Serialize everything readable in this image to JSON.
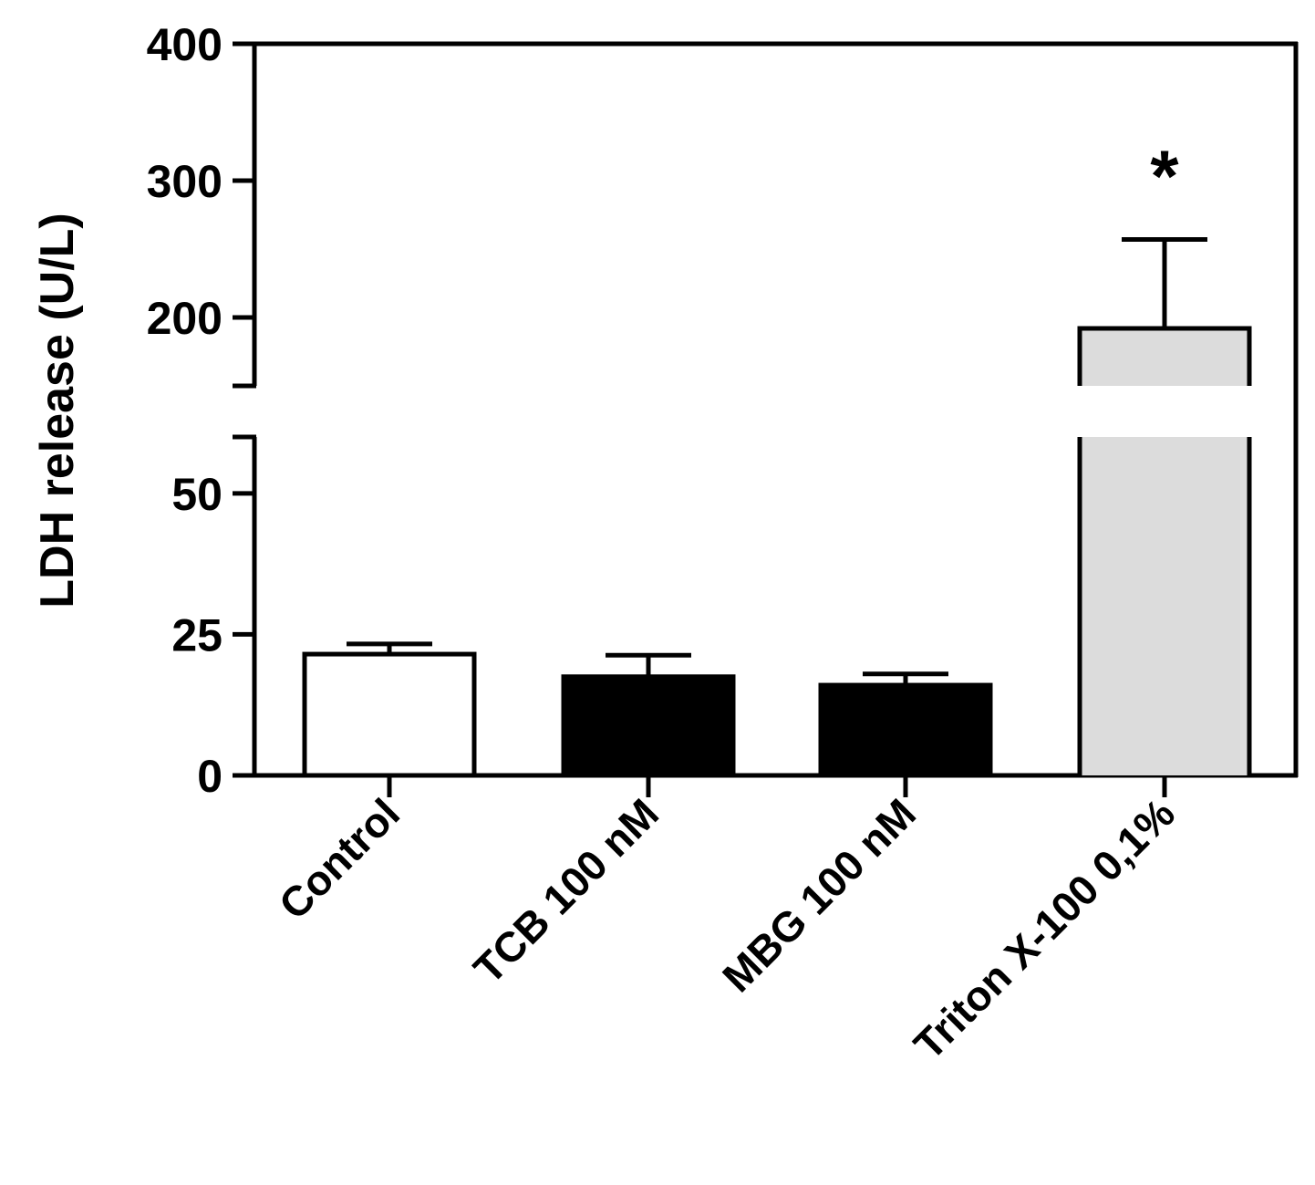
{
  "chart_data": {
    "type": "bar",
    "title": "",
    "xlabel": "",
    "ylabel": "LDH release (U/L)",
    "categories": [
      "Control",
      "TCB 100 nM",
      "MBG 100 nM",
      "Triton X-100 0,1%"
    ],
    "values": [
      21.5,
      17.5,
      16.0,
      192
    ],
    "errors": [
      1.8,
      3.8,
      2.0,
      65
    ],
    "bar_colors": [
      "#ffffff",
      "#000000",
      "#000000",
      "#dcdcdc"
    ],
    "annotations": [
      "",
      "",
      "",
      "*"
    ],
    "axis_break": [
      60,
      150
    ],
    "lower_segment": {
      "ylim": [
        0,
        60
      ],
      "ticks": [
        "0",
        "25",
        "50"
      ]
    },
    "upper_segment": {
      "ylim": [
        150,
        400
      ],
      "ticks": [
        "200",
        "300",
        "400"
      ]
    },
    "grid": false,
    "legend": "none"
  }
}
